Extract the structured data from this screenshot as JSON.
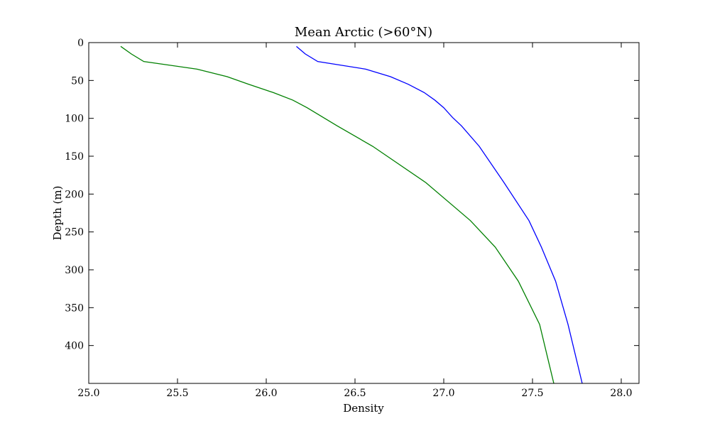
{
  "chart_data": {
    "type": "line",
    "title": "Mean Arctic (>60°N)",
    "xlabel": "Density",
    "ylabel": "Depth (m)",
    "xlim": [
      25.0,
      28.1
    ],
    "ylim": [
      450,
      0
    ],
    "y_inverted": true,
    "grid": false,
    "legend": "none",
    "xticks": [
      "25.0",
      "25.5",
      "26.0",
      "26.5",
      "27.0",
      "27.5",
      "28.0"
    ],
    "yticks": [
      "0",
      "50",
      "100",
      "150",
      "200",
      "250",
      "300",
      "350",
      "400"
    ],
    "series": [
      {
        "color": "#0000ff",
        "points": [
          {
            "density": 26.17,
            "depth": 5
          },
          {
            "density": 26.22,
            "depth": 15
          },
          {
            "density": 26.29,
            "depth": 25
          },
          {
            "density": 26.56,
            "depth": 35
          },
          {
            "density": 26.7,
            "depth": 45
          },
          {
            "density": 26.8,
            "depth": 55
          },
          {
            "density": 26.89,
            "depth": 66
          },
          {
            "density": 26.95,
            "depth": 76
          },
          {
            "density": 27.0,
            "depth": 86
          },
          {
            "density": 27.05,
            "depth": 99
          },
          {
            "density": 27.1,
            "depth": 110
          },
          {
            "density": 27.2,
            "depth": 137
          },
          {
            "density": 27.34,
            "depth": 185
          },
          {
            "density": 27.48,
            "depth": 235
          },
          {
            "density": 27.55,
            "depth": 270
          },
          {
            "density": 27.63,
            "depth": 315
          },
          {
            "density": 27.7,
            "depth": 372
          },
          {
            "density": 27.78,
            "depth": 450
          }
        ]
      },
      {
        "color": "#008000",
        "points": [
          {
            "density": 25.18,
            "depth": 5
          },
          {
            "density": 25.24,
            "depth": 15
          },
          {
            "density": 25.31,
            "depth": 25
          },
          {
            "density": 25.61,
            "depth": 35
          },
          {
            "density": 25.78,
            "depth": 45
          },
          {
            "density": 25.9,
            "depth": 55
          },
          {
            "density": 26.04,
            "depth": 66
          },
          {
            "density": 26.15,
            "depth": 76
          },
          {
            "density": 26.23,
            "depth": 86
          },
          {
            "density": 26.4,
            "depth": 110
          },
          {
            "density": 26.6,
            "depth": 137
          },
          {
            "density": 26.9,
            "depth": 185
          },
          {
            "density": 27.15,
            "depth": 235
          },
          {
            "density": 27.29,
            "depth": 270
          },
          {
            "density": 27.42,
            "depth": 315
          },
          {
            "density": 27.54,
            "depth": 372
          },
          {
            "density": 27.62,
            "depth": 450
          }
        ]
      }
    ]
  }
}
